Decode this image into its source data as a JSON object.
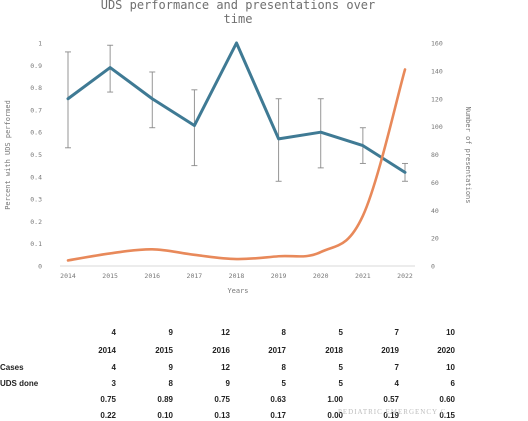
{
  "chart_data": {
    "type": "line",
    "title": "UDS  performance and presentations over time",
    "xlabel": "Years",
    "ylabel_left": "Percent with UDS performed",
    "ylabel_right": "Number of presentations",
    "x": [
      "2014",
      "2015",
      "2016",
      "2017",
      "2018",
      "2019",
      "2020",
      "2021",
      "2022"
    ],
    "ylim_left": [
      0,
      1
    ],
    "ylim_right": [
      0,
      160
    ],
    "yticks_left": [
      "0",
      "0.1",
      "0.2",
      "0.3",
      "0.4",
      "0.5",
      "0.6",
      "0.7",
      "0.8",
      "0.9",
      "1"
    ],
    "yticks_right": [
      "0",
      "20",
      "40",
      "60",
      "80",
      "100",
      "120",
      "140",
      "160"
    ],
    "series": [
      {
        "axis": "left",
        "color": "#3f7a94",
        "values": [
          0.75,
          0.89,
          0.75,
          0.63,
          1.0,
          0.57,
          0.6,
          0.54,
          0.42
        ],
        "err_hi": [
          0.96,
          0.99,
          0.87,
          0.79,
          1.0,
          0.75,
          0.75,
          0.62,
          0.46
        ],
        "err_lo": [
          0.53,
          0.78,
          0.62,
          0.45,
          1.0,
          0.38,
          0.44,
          0.46,
          0.38
        ]
      },
      {
        "axis": "right",
        "color": "#e8895a",
        "values": [
          4,
          9,
          12,
          8,
          5,
          7,
          10,
          36,
          141
        ]
      }
    ]
  },
  "table": {
    "col_headers": [
      "4",
      "9",
      "12",
      "8",
      "5",
      "7",
      "10"
    ],
    "years": [
      "2014",
      "2015",
      "2016",
      "2017",
      "2018",
      "2019",
      "2020"
    ],
    "rows": [
      {
        "label": "Cases",
        "values": [
          "4",
          "9",
          "12",
          "8",
          "5",
          "7",
          "10"
        ]
      },
      {
        "label": "UDS done",
        "values": [
          "3",
          "8",
          "9",
          "5",
          "5",
          "4",
          "6"
        ]
      },
      {
        "label": "",
        "values": [
          "0.75",
          "0.89",
          "0.75",
          "0.63",
          "1.00",
          "0.57",
          "0.60"
        ]
      },
      {
        "label": "",
        "values": [
          "0.22",
          "0.10",
          "0.13",
          "0.17",
          "0.00",
          "0.19",
          "0.15"
        ]
      }
    ]
  },
  "watermark": "PEDIATRIC EMERGENCY C"
}
